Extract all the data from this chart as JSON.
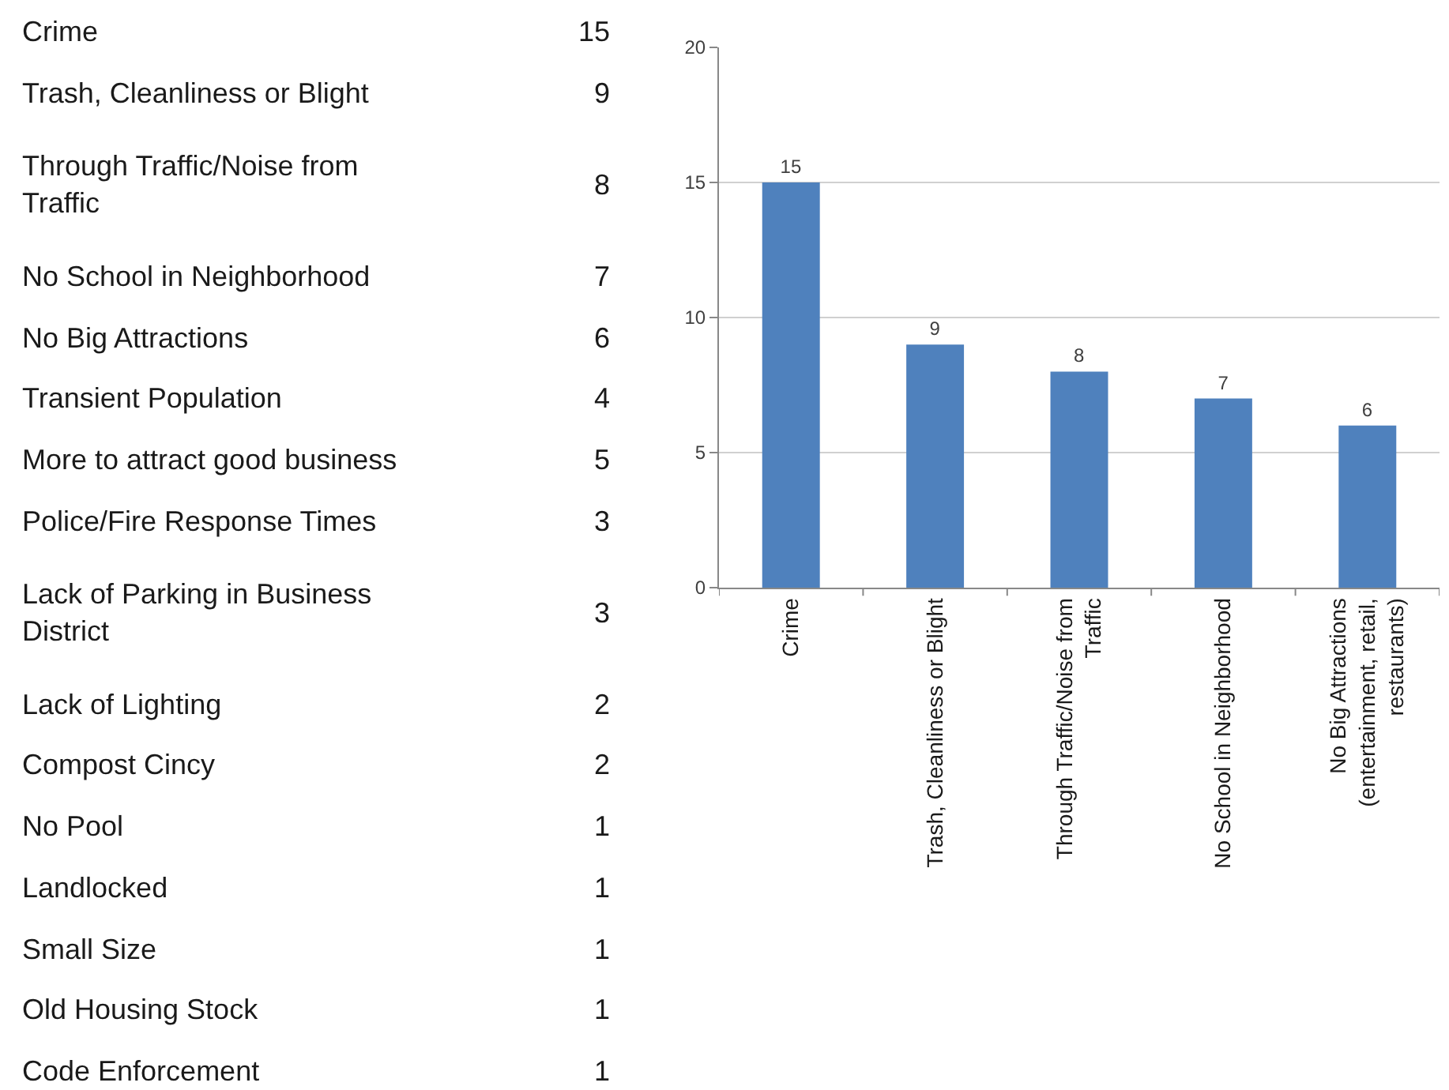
{
  "chart_data": [
    {
      "type": "other",
      "categories": [
        "Crime",
        "Trash, Cleanliness or Blight",
        "Through Traffic/Noise from Traffic",
        "No School in Neighborhood",
        "No Big Attractions",
        "Transient Population",
        "More to attract good business",
        "Police/Fire Response Times",
        "Lack of Parking in Business District",
        "Lack of Lighting",
        "Compost Cincy",
        "No Pool",
        "Landlocked",
        "Small Size",
        "Old Housing Stock",
        "Code Enforcement"
      ],
      "values": [
        15,
        9,
        8,
        7,
        6,
        4,
        5,
        3,
        3,
        2,
        2,
        1,
        1,
        1,
        1,
        1
      ],
      "data_labels": true
    },
    {
      "type": "bar",
      "categories": [
        "Crime",
        "Trash, Cleanliness or Blight",
        "Through Traffic/Noise from Traffic",
        "No School in Neighborhood",
        "No Big Attractions (entertainment, retail, restaurants)"
      ],
      "values": [
        15,
        9,
        8,
        7,
        6
      ],
      "color": "#4f81bd",
      "ylim": [
        0,
        20
      ],
      "yticks": [
        0,
        5,
        10,
        15,
        20
      ],
      "grid": "y",
      "data_labels": true
    }
  ]
}
